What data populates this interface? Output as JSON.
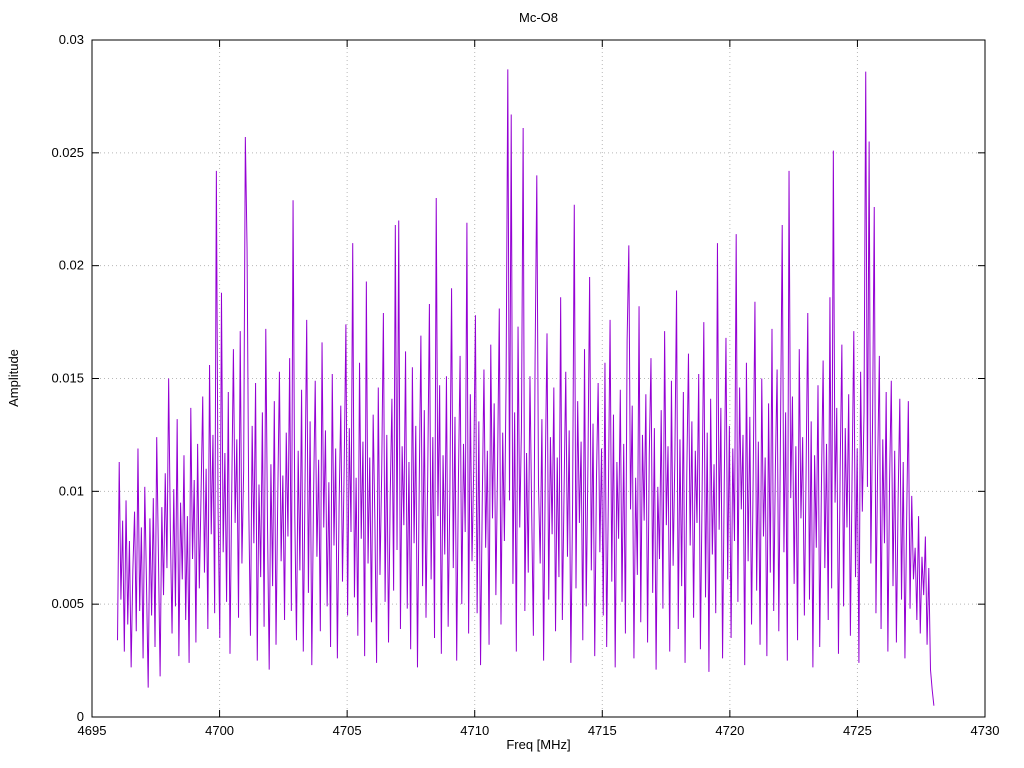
{
  "title": "Mc-O8",
  "chart_data": {
    "type": "line",
    "title": "Mc-O8",
    "xlabel": "Freq [MHz]",
    "ylabel": "Amplitude",
    "xlim": [
      4695,
      4730
    ],
    "ylim": [
      0,
      0.03
    ],
    "x_ticks": [
      4695,
      4700,
      4705,
      4710,
      4715,
      4720,
      4725,
      4730
    ],
    "x_tick_labels": [
      "4695",
      "4700",
      "4705",
      "4710",
      "4715",
      "4720",
      "4725",
      "4730"
    ],
    "y_ticks": [
      0,
      0.005,
      0.01,
      0.015,
      0.02,
      0.025,
      0.03
    ],
    "y_tick_labels": [
      "0",
      "0.005",
      "0.01",
      "0.015",
      "0.02",
      "0.025",
      "0.03"
    ],
    "grid": true,
    "legend": "none",
    "line_color": "#9400d3",
    "background_color": "#ffffff",
    "grid_color": "#b8b8b8",
    "x_start": 4696.0,
    "x_step": 0.0668,
    "values": [
      0.0034,
      0.0113,
      0.0052,
      0.0087,
      0.0029,
      0.0096,
      0.0041,
      0.0078,
      0.0022,
      0.0065,
      0.0091,
      0.0038,
      0.0119,
      0.0047,
      0.0084,
      0.0026,
      0.0102,
      0.0059,
      0.0013,
      0.0088,
      0.0045,
      0.0097,
      0.0031,
      0.0124,
      0.0072,
      0.0018,
      0.0093,
      0.0054,
      0.0108,
      0.0066,
      0.015,
      0.0083,
      0.0037,
      0.0101,
      0.0049,
      0.0132,
      0.0027,
      0.0095,
      0.0061,
      0.0116,
      0.0043,
      0.0089,
      0.0024,
      0.0137,
      0.007,
      0.0105,
      0.0033,
      0.0121,
      0.0057,
      0.0098,
      0.0142,
      0.0064,
      0.011,
      0.0039,
      0.0156,
      0.0081,
      0.0125,
      0.0046,
      0.0242,
      0.0092,
      0.0035,
      0.0188,
      0.0073,
      0.0117,
      0.0051,
      0.0144,
      0.0028,
      0.0099,
      0.0163,
      0.0086,
      0.0123,
      0.0044,
      0.0171,
      0.0068,
      0.0109,
      0.0257,
      0.0208,
      0.0094,
      0.0036,
      0.0129,
      0.0077,
      0.0148,
      0.0025,
      0.0103,
      0.0062,
      0.0135,
      0.004,
      0.0172,
      0.0085,
      0.0021,
      0.0112,
      0.0058,
      0.014,
      0.0032,
      0.0096,
      0.0153,
      0.0069,
      0.0107,
      0.0043,
      0.0126,
      0.008,
      0.0159,
      0.0047,
      0.0229,
      0.009,
      0.0034,
      0.0118,
      0.0065,
      0.0145,
      0.0029,
      0.0102,
      0.0176,
      0.0055,
      0.0131,
      0.0023,
      0.0097,
      0.0149,
      0.0071,
      0.0114,
      0.0038,
      0.0166,
      0.0084,
      0.0127,
      0.0049,
      0.0104,
      0.0031,
      0.0152,
      0.0076,
      0.0119,
      0.0026,
      0.0093,
      0.0138,
      0.006,
      0.0111,
      0.0174,
      0.0045,
      0.0128,
      0.0082,
      0.021,
      0.0053,
      0.0106,
      0.0036,
      0.0157,
      0.0079,
      0.0122,
      0.0027,
      0.0193,
      0.0068,
      0.0115,
      0.0042,
      0.0134,
      0.0087,
      0.0024,
      0.0146,
      0.0063,
      0.0108,
      0.0179,
      0.0051,
      0.0125,
      0.0033,
      0.0098,
      0.0141,
      0.0056,
      0.0218,
      0.0074,
      0.022,
      0.0039,
      0.012,
      0.0085,
      0.0162,
      0.0048,
      0.0113,
      0.003,
      0.0155,
      0.0077,
      0.0129,
      0.0022,
      0.0101,
      0.0169,
      0.0058,
      0.0136,
      0.0044,
      0.0107,
      0.0183,
      0.0061,
      0.0124,
      0.0035,
      0.023,
      0.0089,
      0.0147,
      0.0028,
      0.0116,
      0.0072,
      0.0151,
      0.004,
      0.0099,
      0.019,
      0.0066,
      0.0133,
      0.0025,
      0.0104,
      0.016,
      0.005,
      0.0121,
      0.0082,
      0.0219,
      0.0037,
      0.0143,
      0.0069,
      0.011,
      0.0178,
      0.0046,
      0.0131,
      0.0023,
      0.0095,
      0.0154,
      0.0075,
      0.0118,
      0.0032,
      0.0165,
      0.0088,
      0.0139,
      0.0054,
      0.0112,
      0.0181,
      0.0041,
      0.0126,
      0.0078,
      0.015,
      0.0287,
      0.0096,
      0.0267,
      0.0059,
      0.0135,
      0.0029,
      0.0173,
      0.0084,
      0.0128,
      0.0261,
      0.0047,
      0.0117,
      0.0064,
      0.0151,
      0.0091,
      0.0036,
      0.0158,
      0.024,
      0.0103,
      0.0068,
      0.0132,
      0.0025,
      0.0109,
      0.017,
      0.0052,
      0.0124,
      0.0081,
      0.0146,
      0.0038,
      0.0115,
      0.0062,
      0.0186,
      0.0043,
      0.01,
      0.0153,
      0.0071,
      0.0127,
      0.0024,
      0.0094,
      0.0227,
      0.0057,
      0.014,
      0.0086,
      0.0122,
      0.0034,
      0.0163,
      0.0049,
      0.0111,
      0.0195,
      0.0065,
      0.013,
      0.0027,
      0.0105,
      0.0148,
      0.0073,
      0.0119,
      0.0045,
      0.0157,
      0.0031,
      0.0098,
      0.0176,
      0.006,
      0.0134,
      0.0022,
      0.0113,
      0.0079,
      0.0145,
      0.0051,
      0.0121,
      0.0037,
      0.0167,
      0.0209,
      0.0092,
      0.0138,
      0.0026,
      0.0106,
      0.0063,
      0.0182,
      0.0042,
      0.0125,
      0.0087,
      0.0143,
      0.0033,
      0.0116,
      0.0159,
      0.0055,
      0.0128,
      0.0021,
      0.0102,
      0.007,
      0.0136,
      0.0048,
      0.0171,
      0.0085,
      0.012,
      0.0029,
      0.0149,
      0.0067,
      0.0114,
      0.0189,
      0.0039,
      0.0123,
      0.0058,
      0.0144,
      0.0024,
      0.0107,
      0.0161,
      0.0076,
      0.0131,
      0.0044,
      0.0118,
      0.0086,
      0.0152,
      0.003,
      0.0099,
      0.0175,
      0.0053,
      0.0126,
      0.002,
      0.0141,
      0.0072,
      0.0112,
      0.0046,
      0.021,
      0.0083,
      0.0137,
      0.0026,
      0.0104,
      0.0168,
      0.0061,
      0.0129,
      0.0035,
      0.0119,
      0.0078,
      0.0214,
      0.0051,
      0.0146,
      0.0092,
      0.0125,
      0.0023,
      0.0157,
      0.0069,
      0.0133,
      0.0041,
      0.0109,
      0.0184,
      0.0056,
      0.0122,
      0.0032,
      0.015,
      0.008,
      0.0115,
      0.0027,
      0.0139,
      0.0064,
      0.0172,
      0.0047,
      0.0111,
      0.0154,
      0.0038,
      0.0127,
      0.0218,
      0.0073,
      0.0135,
      0.0025,
      0.0242,
      0.0097,
      0.0142,
      0.0059,
      0.012,
      0.0034,
      0.0163,
      0.0088,
      0.0124,
      0.0045,
      0.0108,
      0.0179,
      0.0052,
      0.0131,
      0.0022,
      0.0116,
      0.0075,
      0.0147,
      0.0031,
      0.0102,
      0.0158,
      0.0066,
      0.0121,
      0.0043,
      0.0186,
      0.0057,
      0.0251,
      0.0095,
      0.0137,
      0.0028,
      0.011,
      0.0165,
      0.0049,
      0.0128,
      0.0084,
      0.0143,
      0.0036,
      0.0107,
      0.0171,
      0.0062,
      0.0119,
      0.0024,
      0.0153,
      0.0091,
      0.0135,
      0.0286,
      0.0102,
      0.0255,
      0.0068,
      0.013,
      0.0226,
      0.0046,
      0.0112,
      0.016,
      0.0039,
      0.0123,
      0.0077,
      0.0144,
      0.0029,
      0.0105,
      0.0149,
      0.0058,
      0.0118,
      0.0033,
      0.0096,
      0.0141,
      0.0052,
      0.0113,
      0.0026,
      0.0087,
      0.014,
      0.0048,
      0.0098,
      0.0061,
      0.0075,
      0.0043,
      0.0089,
      0.0037,
      0.0071,
      0.0054,
      0.008,
      0.0032,
      0.0066,
      0.0021,
      0.0012,
      0.0005
    ]
  }
}
